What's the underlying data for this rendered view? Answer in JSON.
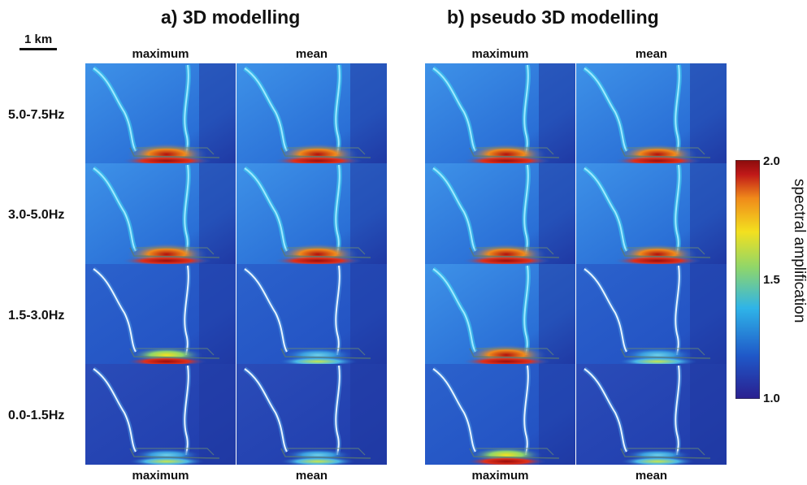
{
  "figure": {
    "scale_bar": {
      "label": "1 km"
    },
    "sections": [
      {
        "title": "a) 3D modelling",
        "top_columns": [
          "maximum",
          "mean"
        ],
        "bottom_columns": [
          "maximum",
          "mean"
        ]
      },
      {
        "title": "b) pseudo 3D modelling",
        "top_columns": [
          "maximum",
          "mean"
        ],
        "bottom_columns": [
          "maximum",
          "mean"
        ]
      }
    ],
    "frequency_bands": [
      "5.0-7.5Hz",
      "3.0-5.0Hz",
      "1.5-3.0Hz",
      "0.0-1.5Hz"
    ],
    "colorbar": {
      "title": "spectral amplification",
      "ticks": [
        "2.0",
        "1.5",
        "1.0"
      ],
      "tick_values": [
        2.0,
        1.5,
        1.0
      ],
      "range": [
        1.0,
        2.0
      ],
      "colormap": "jet",
      "colors": [
        "#2a1f8f",
        "#1f58c8",
        "#2fb4e8",
        "#8fd66a",
        "#f3e01f",
        "#f08a1a",
        "#c01818",
        "#8a0c0c"
      ]
    }
  }
}
